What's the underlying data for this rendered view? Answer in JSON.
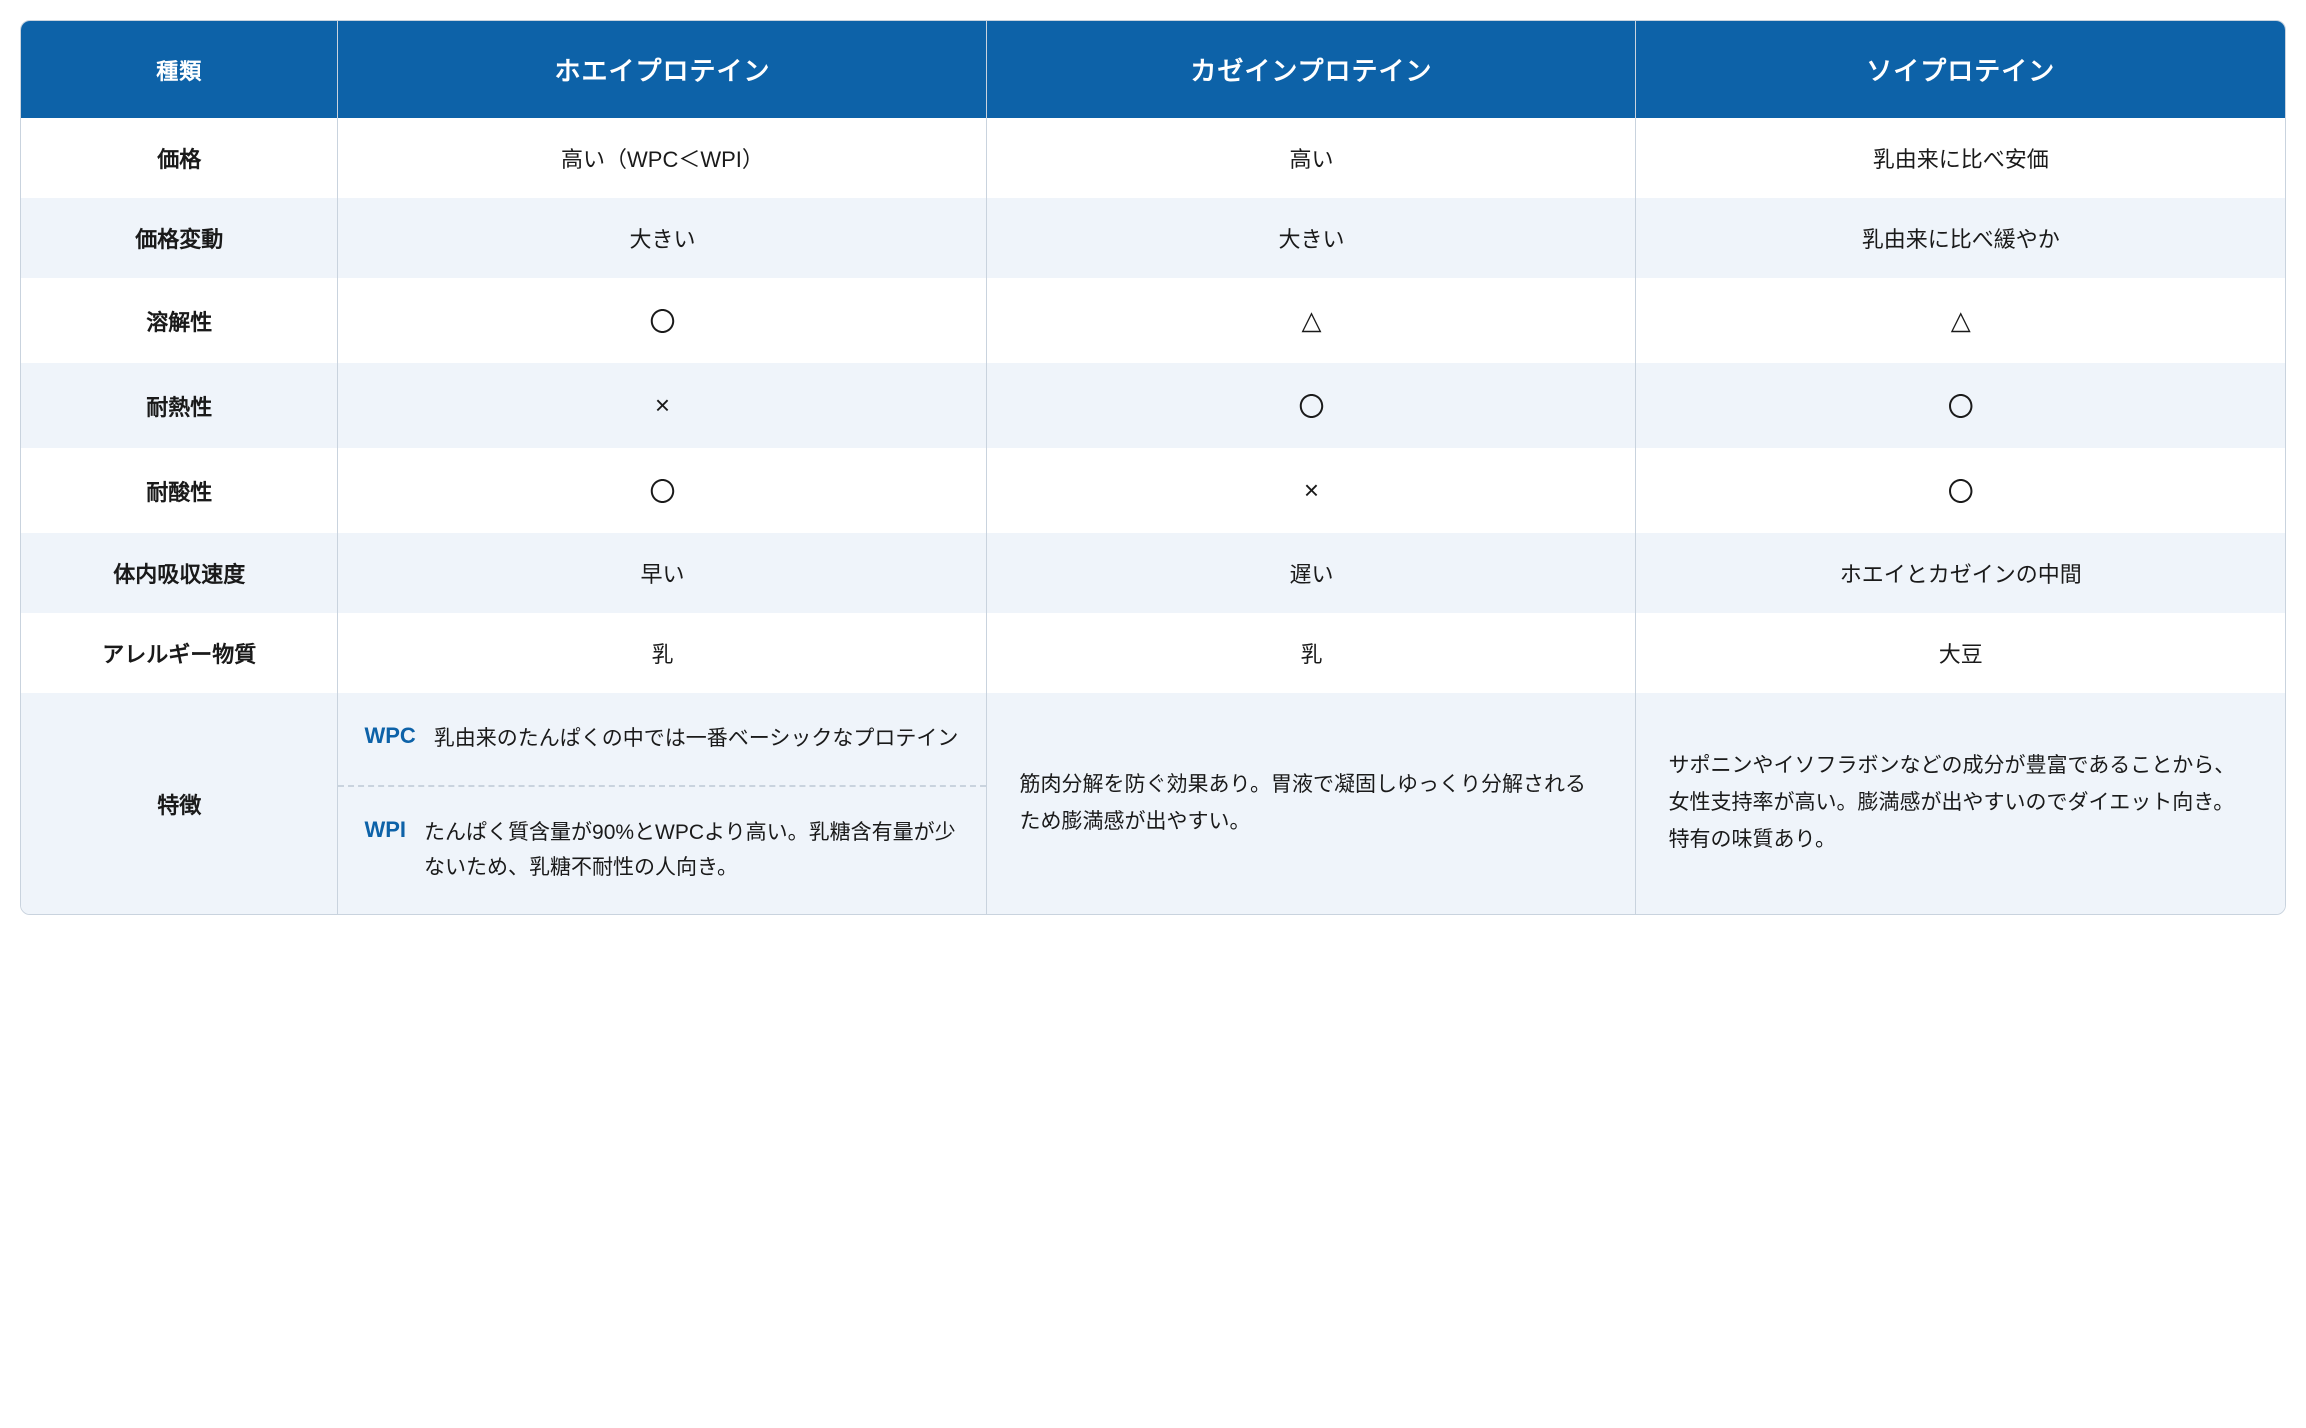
{
  "colors": {
    "header_bg": "#0d62a8",
    "header_fg": "#ffffff",
    "border": "#c9d3de",
    "alt_row_bg": "#eff4fa",
    "text": "#1a1a1a",
    "accent": "#0d62a8"
  },
  "header": {
    "type_label": "種類",
    "cols": [
      "ホエイプロテイン",
      "カゼインプロテイン",
      "ソイプロテイン"
    ]
  },
  "rows": [
    {
      "label": "価格",
      "values": [
        "高い（WPC＜WPI）",
        "高い",
        "乳由来に比べ安価"
      ]
    },
    {
      "label": "価格変動",
      "values": [
        "大きい",
        "大きい",
        "乳由来に比べ緩やか"
      ]
    },
    {
      "label": "溶解性",
      "values": [
        "〇",
        "△",
        "△"
      ]
    },
    {
      "label": "耐熱性",
      "values": [
        "×",
        "〇",
        "〇"
      ]
    },
    {
      "label": "耐酸性",
      "values": [
        "〇",
        "×",
        "〇"
      ]
    },
    {
      "label": "体内吸収速度",
      "values": [
        "早い",
        "遅い",
        "ホエイとカゼインの中間"
      ]
    },
    {
      "label": "アレルギー物質",
      "values": [
        "乳",
        "乳",
        "大豆"
      ]
    }
  ],
  "feature": {
    "label": "特徴",
    "whey": {
      "wpc_label": "WPC",
      "wpc_text": "乳由来のたんぱくの中では一番ベーシックなプロテイン",
      "wpi_label": "WPI",
      "wpi_text": "たんぱく質含量が90%とWPCより高い。乳糖含有量が少ないため、乳糖不耐性の人向き。"
    },
    "casein": "筋肉分解を防ぐ効果あり。胃液で凝固しゆっくり分解されるため膨満感が出やすい。",
    "soy": "サポニンやイソフラボンなどの成分が豊富であることから、女性支持率が高い。膨満感が出やすいのでダイエット向き。特有の味質あり。"
  }
}
